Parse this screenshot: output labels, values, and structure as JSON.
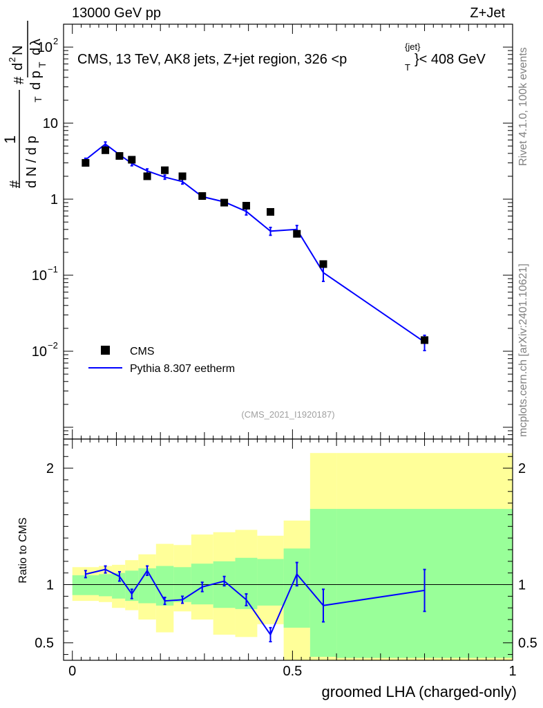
{
  "header": {
    "left": "13000 GeV pp",
    "right": "Z+Jet"
  },
  "side": {
    "rivet": "Rivet 4.1.0,  100k events",
    "mcplots": "mcplots.cern.ch [arXiv:2401.10621]"
  },
  "title_text": {
    "main": "CMS, 13 TeV, AK8 jets, Z+jet region, 326 <p",
    "sup": "{jet}",
    "sub": "T",
    "tail": "}< 408 GeV"
  },
  "ylabel": {
    "hash": "#",
    "one": "1",
    "dN": "d N / d p",
    "dN_sub": "T",
    "d2N": "d",
    "d2N_sup": "2",
    "d2N_tail": "N",
    "dpt": "d p",
    "dpt_sub": "T",
    "dl": "d",
    "lambda": "λ"
  },
  "analysis_id": "(CMS_2021_I1920187)",
  "ratio_ylabel": "Ratio to CMS",
  "xlabel": "groomed LHA (charged-only)",
  "chart_data": [
    {
      "type": "scatter",
      "panel": "main",
      "yscale": "log",
      "xlim": [
        -0.02,
        1.0
      ],
      "ylim": [
        0.0007,
        200
      ],
      "x_ticks": [
        0,
        0.5,
        1
      ],
      "y_ticks": [
        {
          "value": 0.01,
          "base": "10",
          "exp": "−2"
        },
        {
          "value": 0.1,
          "base": "10",
          "exp": "−1"
        },
        {
          "value": 1,
          "base": "1",
          "exp": ""
        },
        {
          "value": 10,
          "base": "10",
          "exp": ""
        },
        {
          "value": 100,
          "base": "10",
          "exp": "2"
        }
      ],
      "series": [
        {
          "name": "CMS",
          "style": "markers",
          "color": "#000000",
          "x": [
            0.03,
            0.075,
            0.107,
            0.135,
            0.17,
            0.21,
            0.25,
            0.295,
            0.345,
            0.395,
            0.45,
            0.51,
            0.57,
            0.8
          ],
          "y": [
            3.0,
            4.4,
            3.7,
            3.3,
            2.0,
            2.4,
            2.0,
            1.1,
            0.9,
            0.82,
            0.68,
            0.35,
            0.14,
            0.014
          ]
        },
        {
          "name": "Pythia 8.307 eetherm",
          "style": "line",
          "color": "#0000ff",
          "x": [
            0.03,
            0.075,
            0.107,
            0.135,
            0.17,
            0.21,
            0.25,
            0.295,
            0.345,
            0.395,
            0.45,
            0.51,
            0.57,
            0.8
          ],
          "y": [
            3.3,
            5.3,
            3.85,
            2.95,
            2.35,
            1.95,
            1.7,
            1.08,
            0.92,
            0.69,
            0.38,
            0.4,
            0.108,
            0.0132
          ],
          "yerr": [
            0.15,
            0.35,
            0.2,
            0.2,
            0.15,
            0.12,
            0.12,
            0.08,
            0.06,
            0.07,
            0.045,
            0.05,
            0.025,
            0.003
          ]
        }
      ]
    },
    {
      "type": "line",
      "panel": "ratio",
      "ylabel": "Ratio to CMS",
      "xlabel": "groomed LHA (charged-only)",
      "xlim": [
        -0.02,
        1.0
      ],
      "ylim": [
        0.35,
        2.25
      ],
      "x_ticks": [
        0,
        0.5,
        1
      ],
      "y_ticks": [
        0.5,
        1,
        2
      ],
      "bins": [
        0,
        0.06,
        0.09,
        0.12,
        0.15,
        0.19,
        0.23,
        0.27,
        0.32,
        0.37,
        0.42,
        0.48,
        0.54,
        0.6,
        1.0
      ],
      "band_inner": {
        "color": "#99ff99",
        "lo": [
          0.91,
          0.9,
          0.88,
          0.86,
          0.84,
          0.82,
          0.85,
          0.83,
          0.8,
          0.79,
          0.82,
          0.63,
          0.38,
          0.37
        ],
        "hi": [
          1.08,
          1.09,
          1.1,
          1.12,
          1.14,
          1.16,
          1.15,
          1.18,
          1.2,
          1.23,
          1.22,
          1.31,
          1.65,
          1.65
        ]
      },
      "band_outer": {
        "color": "#ffff99",
        "lo": [
          0.86,
          0.85,
          0.8,
          0.78,
          0.7,
          0.59,
          0.77,
          0.7,
          0.57,
          0.55,
          0.66,
          0.34,
          0.34,
          0.34
        ],
        "hi": [
          1.15,
          1.16,
          1.17,
          1.21,
          1.26,
          1.35,
          1.34,
          1.43,
          1.45,
          1.47,
          1.42,
          1.55,
          2.13,
          2.13
        ]
      },
      "series": [
        {
          "name": "Pythia 8.307 eetherm",
          "color": "#0000ff",
          "x": [
            0.03,
            0.075,
            0.107,
            0.135,
            0.17,
            0.21,
            0.25,
            0.295,
            0.345,
            0.395,
            0.45,
            0.51,
            0.57,
            0.8
          ],
          "y": [
            1.09,
            1.13,
            1.07,
            0.92,
            1.12,
            0.86,
            0.87,
            0.98,
            1.03,
            0.87,
            0.57,
            1.09,
            0.82,
            0.95
          ],
          "yerr": [
            0.03,
            0.03,
            0.04,
            0.04,
            0.04,
            0.03,
            0.03,
            0.04,
            0.04,
            0.05,
            0.06,
            0.1,
            0.14,
            0.18
          ]
        }
      ],
      "reference_line": 1
    }
  ],
  "legend": [
    {
      "label": "CMS",
      "style": "marker"
    },
    {
      "label": "Pythia 8.307 eetherm",
      "style": "line"
    }
  ]
}
